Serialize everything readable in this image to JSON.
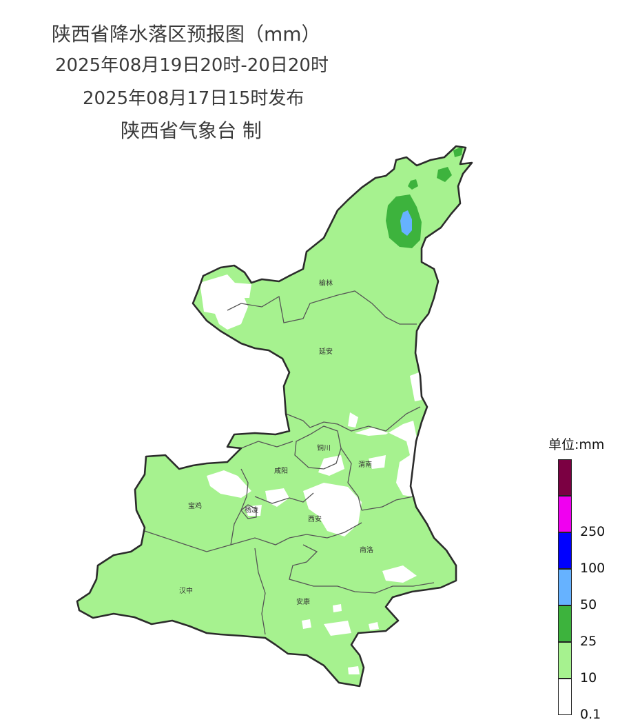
{
  "title": {
    "line1": "陕西省降水落区预报图（mm）",
    "line2": "2025年08月19日20时-20日20时",
    "line3": "2025年08月17日15时发布",
    "line4": "陕西省气象台 制"
  },
  "cities": [
    "榆林",
    "延安",
    "铜川",
    "咸阳",
    "渭南",
    "宝鸡",
    "杨凌",
    "西安",
    "商洛",
    "汉中",
    "安康"
  ],
  "legend": {
    "title": "单位:mm",
    "classes": [
      {
        "label": "",
        "color": "#7b0042"
      },
      {
        "label": "250",
        "color": "#f000f0"
      },
      {
        "label": "100",
        "color": "#0000ff"
      },
      {
        "label": "50",
        "color": "#66b2ff"
      },
      {
        "label": "25",
        "color": "#3db33d"
      },
      {
        "label": "10",
        "color": "#a6f28f"
      },
      {
        "label": "0.1",
        "color": ""
      }
    ]
  },
  "colors": {
    "light_rain": "#a6f28f",
    "moderate_rain": "#3db33d",
    "heavy_rain": "#66b2ff",
    "border": "#2b2b2b",
    "district_border": "#555555"
  }
}
